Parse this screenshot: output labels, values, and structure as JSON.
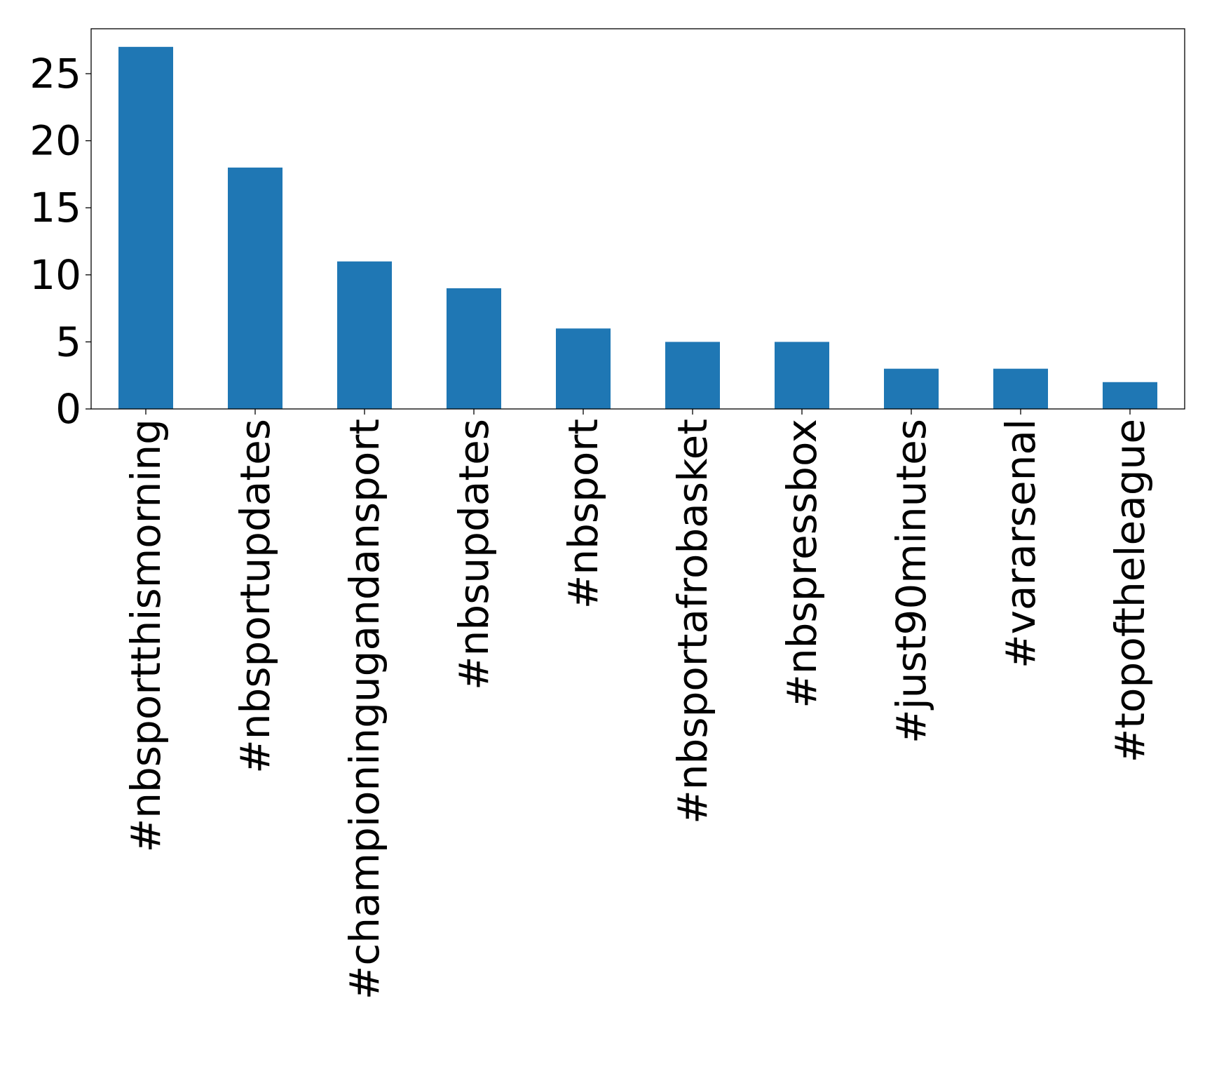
{
  "chart_data": {
    "type": "bar",
    "title": "",
    "xlabel": "",
    "ylabel": "",
    "categories": [
      "#nbsportthismorning",
      "#nbsportupdates",
      "#championingugandansport",
      "#nbsupdates",
      "#nbsport",
      "#nbsportafrobasket",
      "#nbspressbox",
      "#just90minutes",
      "#vararsenal",
      "#topoftheleague"
    ],
    "values": [
      27,
      18,
      11,
      9,
      6,
      5,
      5,
      3,
      3,
      2
    ],
    "ylim": [
      0,
      28.35
    ],
    "yticks": [
      0,
      5,
      10,
      15,
      20,
      25
    ],
    "bar_color": "#1f77b4",
    "grid": false,
    "legend": "none"
  }
}
